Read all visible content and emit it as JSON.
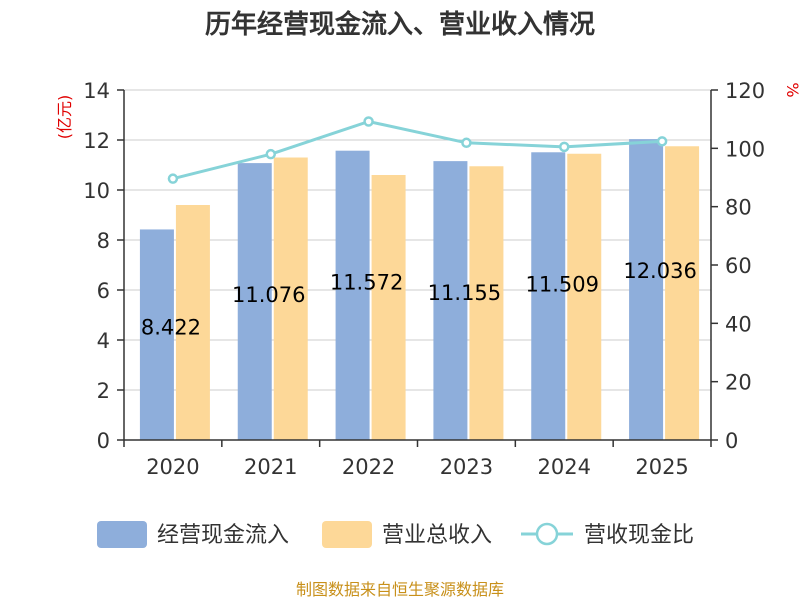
{
  "chart_data": {
    "type": "bar",
    "title": "历年经营现金流入、营业收入情况",
    "categories": [
      "2020",
      "2021",
      "2022",
      "2023",
      "2024",
      "2025"
    ],
    "y_left": {
      "unit_label": "(亿元)",
      "ylim": [
        0,
        14
      ],
      "ticks": [
        0,
        2,
        4,
        6,
        8,
        10,
        12,
        14
      ]
    },
    "y_right": {
      "unit_label": "%",
      "ylim": [
        0,
        120
      ],
      "ticks": [
        0,
        20,
        40,
        60,
        80,
        100,
        120
      ]
    },
    "grid": true,
    "legend_position": "bottom",
    "series": [
      {
        "name": "经营现金流入",
        "type": "bar",
        "axis": "left",
        "color": "#8eaedb",
        "values": [
          8.422,
          11.076,
          11.572,
          11.155,
          11.509,
          12.036
        ],
        "data_labels": [
          "8.422",
          "11.076",
          "11.572",
          "11.155",
          "11.509",
          "12.036"
        ]
      },
      {
        "name": "营业总收入",
        "type": "bar",
        "axis": "left",
        "color": "#fdd898",
        "values": [
          9.4,
          11.3,
          10.6,
          10.95,
          11.45,
          11.75
        ]
      },
      {
        "name": "营收现金比",
        "type": "line",
        "axis": "right",
        "color": "#86d3d8",
        "values": [
          89.6,
          98.0,
          109.2,
          101.9,
          100.5,
          102.4
        ]
      }
    ]
  },
  "source": "制图数据来自恒生聚源数据库"
}
